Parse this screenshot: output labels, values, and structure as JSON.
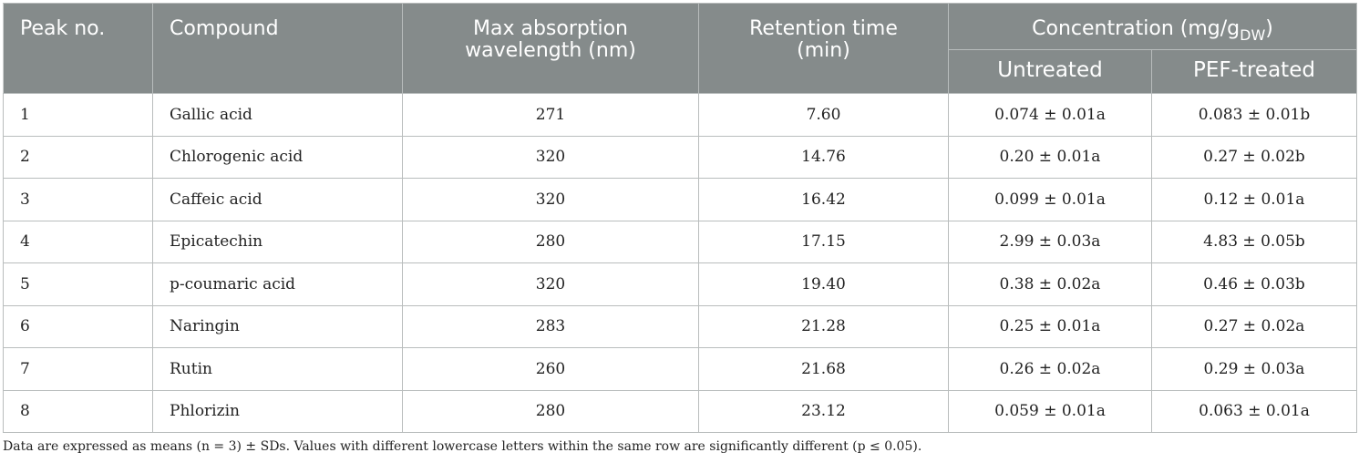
{
  "headers": {
    "peak_no": "Peak no.",
    "compound": "Compound",
    "max_absorption": "Max absorption wavelength (nm)",
    "retention_time": "Retention time (min)",
    "concentration": "Concentration (mg/g",
    "concentration_sub": "DW",
    "concentration_close": ")",
    "untreated": "Untreated",
    "pef_treated": "PEF-treated"
  },
  "rows": [
    {
      "peak": "1",
      "compound": "Gallic acid",
      "wavelength": "271",
      "retention": "7.60",
      "untreated": "0.074 ± 0.01a",
      "pef": "0.083 ± 0.01b"
    },
    {
      "peak": "2",
      "compound": "Chlorogenic acid",
      "wavelength": "320",
      "retention": "14.76",
      "untreated": "0.20 ± 0.01a",
      "pef": "0.27 ± 0.02b"
    },
    {
      "peak": "3",
      "compound": "Caffeic acid",
      "wavelength": "320",
      "retention": "16.42",
      "untreated": "0.099 ± 0.01a",
      "pef": "0.12 ± 0.01a"
    },
    {
      "peak": "4",
      "compound": "Epicatechin",
      "wavelength": "280",
      "retention": "17.15",
      "untreated": "2.99 ± 0.03a",
      "pef": "4.83 ± 0.05b"
    },
    {
      "peak": "5",
      "compound": "p-coumaric acid",
      "wavelength": "320",
      "retention": "19.40",
      "untreated": "0.38 ± 0.02a",
      "pef": "0.46 ± 0.03b"
    },
    {
      "peak": "6",
      "compound": "Naringin",
      "wavelength": "283",
      "retention": "21.28",
      "untreated": "0.25 ± 0.01a",
      "pef": "0.27 ± 0.02a"
    },
    {
      "peak": "7",
      "compound": "Rutin",
      "wavelength": "260",
      "retention": "21.68",
      "untreated": "0.26 ± 0.02a",
      "pef": "0.29 ± 0.03a"
    },
    {
      "peak": "8",
      "compound": "Phlorizin",
      "wavelength": "280",
      "retention": "23.12",
      "untreated": "0.059 ± 0.01a",
      "pef": "0.063 ± 0.01a"
    }
  ],
  "footnote": "Data are expressed as means (n = 3) ± SDs. Values with different lowercase letters within the same row are significantly different (p ≤ 0.05).",
  "colors": {
    "header_bg": "#858b8b",
    "header_text": "#ffffff",
    "border": "#b9bdbd"
  }
}
